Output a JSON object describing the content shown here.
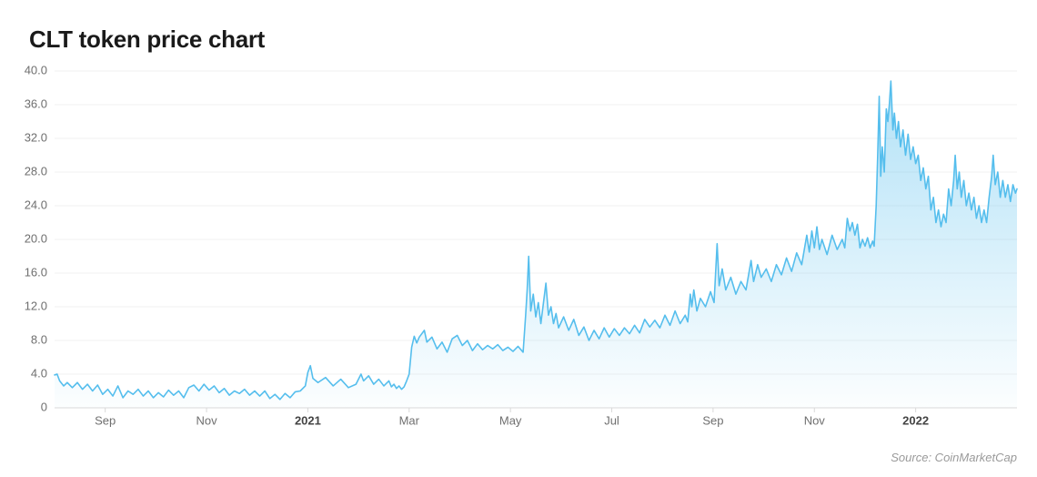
{
  "chart": {
    "type": "area",
    "title": "CLT token price chart",
    "source": "Source: CoinMarketCap",
    "title_fontsize": 26,
    "title_fontweight": 700,
    "title_color": "#1a1a1a",
    "background_color": "#ffffff",
    "grid_color": "#f1f1f1",
    "baseline_color": "#d9d9d9",
    "tick_label_color": "#6f6f6f",
    "tick_label_fontsize": 13,
    "line_color": "#55beed",
    "line_width": 1.6,
    "fill_top": "rgba(85,190,237,0.45)",
    "fill_bottom": "rgba(85,190,237,0.02)",
    "ylim": [
      0,
      40
    ],
    "ytick_step": 4,
    "y_ticks": [
      0,
      4.0,
      8.0,
      12.0,
      16.0,
      20.0,
      24.0,
      28.0,
      32.0,
      36.0,
      40.0
    ],
    "y_tick_labels": [
      "0",
      "4.0",
      "8.0",
      "12.0",
      "16.0",
      "20.0",
      "24.0",
      "28.0",
      "32.0",
      "36.0",
      "40.0"
    ],
    "x_range": [
      0,
      19
    ],
    "x_ticks": [
      {
        "pos": 1,
        "label": "Sep",
        "bold": false
      },
      {
        "pos": 3,
        "label": "Nov",
        "bold": false
      },
      {
        "pos": 5,
        "label": "2021",
        "bold": true
      },
      {
        "pos": 7,
        "label": "Mar",
        "bold": false
      },
      {
        "pos": 9,
        "label": "May",
        "bold": false
      },
      {
        "pos": 11,
        "label": "Jul",
        "bold": false
      },
      {
        "pos": 13,
        "label": "Sep",
        "bold": false
      },
      {
        "pos": 15,
        "label": "Nov",
        "bold": false
      },
      {
        "pos": 17,
        "label": "2022",
        "bold": true
      }
    ],
    "series": {
      "points": [
        [
          0.0,
          3.9
        ],
        [
          0.05,
          4.0
        ],
        [
          0.1,
          3.2
        ],
        [
          0.18,
          2.6
        ],
        [
          0.25,
          3.0
        ],
        [
          0.35,
          2.4
        ],
        [
          0.45,
          3.0
        ],
        [
          0.55,
          2.2
        ],
        [
          0.65,
          2.8
        ],
        [
          0.75,
          2.0
        ],
        [
          0.85,
          2.7
        ],
        [
          0.95,
          1.6
        ],
        [
          1.05,
          2.2
        ],
        [
          1.15,
          1.4
        ],
        [
          1.25,
          2.6
        ],
        [
          1.35,
          1.2
        ],
        [
          1.45,
          2.0
        ],
        [
          1.55,
          1.6
        ],
        [
          1.65,
          2.2
        ],
        [
          1.75,
          1.4
        ],
        [
          1.85,
          2.0
        ],
        [
          1.95,
          1.2
        ],
        [
          2.05,
          1.8
        ],
        [
          2.15,
          1.3
        ],
        [
          2.25,
          2.1
        ],
        [
          2.35,
          1.5
        ],
        [
          2.45,
          2.0
        ],
        [
          2.55,
          1.2
        ],
        [
          2.65,
          2.4
        ],
        [
          2.75,
          2.7
        ],
        [
          2.85,
          2.0
        ],
        [
          2.95,
          2.8
        ],
        [
          3.05,
          2.1
        ],
        [
          3.15,
          2.6
        ],
        [
          3.25,
          1.8
        ],
        [
          3.35,
          2.3
        ],
        [
          3.45,
          1.5
        ],
        [
          3.55,
          2.0
        ],
        [
          3.65,
          1.7
        ],
        [
          3.75,
          2.2
        ],
        [
          3.85,
          1.5
        ],
        [
          3.95,
          2.0
        ],
        [
          4.05,
          1.4
        ],
        [
          4.15,
          2.0
        ],
        [
          4.25,
          1.1
        ],
        [
          4.35,
          1.6
        ],
        [
          4.45,
          1.0
        ],
        [
          4.55,
          1.7
        ],
        [
          4.65,
          1.2
        ],
        [
          4.75,
          1.9
        ],
        [
          4.85,
          2.0
        ],
        [
          4.95,
          2.6
        ],
        [
          5.0,
          4.2
        ],
        [
          5.05,
          5.0
        ],
        [
          5.1,
          3.5
        ],
        [
          5.2,
          3.0
        ],
        [
          5.35,
          3.6
        ],
        [
          5.5,
          2.6
        ],
        [
          5.65,
          3.4
        ],
        [
          5.8,
          2.4
        ],
        [
          5.95,
          2.8
        ],
        [
          6.05,
          4.0
        ],
        [
          6.1,
          3.2
        ],
        [
          6.2,
          3.8
        ],
        [
          6.3,
          2.8
        ],
        [
          6.4,
          3.4
        ],
        [
          6.5,
          2.6
        ],
        [
          6.6,
          3.2
        ],
        [
          6.65,
          2.5
        ],
        [
          6.7,
          2.8
        ],
        [
          6.75,
          2.3
        ],
        [
          6.8,
          2.6
        ],
        [
          6.85,
          2.2
        ],
        [
          6.9,
          2.5
        ],
        [
          6.95,
          3.2
        ],
        [
          7.0,
          4.0
        ],
        [
          7.05,
          7.2
        ],
        [
          7.1,
          8.5
        ],
        [
          7.15,
          7.7
        ],
        [
          7.2,
          8.4
        ],
        [
          7.3,
          9.2
        ],
        [
          7.35,
          7.8
        ],
        [
          7.45,
          8.4
        ],
        [
          7.55,
          7.0
        ],
        [
          7.65,
          7.8
        ],
        [
          7.75,
          6.6
        ],
        [
          7.85,
          8.2
        ],
        [
          7.95,
          8.6
        ],
        [
          8.05,
          7.4
        ],
        [
          8.15,
          8.0
        ],
        [
          8.25,
          6.8
        ],
        [
          8.35,
          7.6
        ],
        [
          8.45,
          6.9
        ],
        [
          8.55,
          7.4
        ],
        [
          8.65,
          7.0
        ],
        [
          8.75,
          7.5
        ],
        [
          8.85,
          6.8
        ],
        [
          8.95,
          7.2
        ],
        [
          9.05,
          6.7
        ],
        [
          9.15,
          7.3
        ],
        [
          9.25,
          6.6
        ],
        [
          9.3,
          11.0
        ],
        [
          9.33,
          14.0
        ],
        [
          9.36,
          18.0
        ],
        [
          9.4,
          11.5
        ],
        [
          9.45,
          13.5
        ],
        [
          9.5,
          10.8
        ],
        [
          9.55,
          12.5
        ],
        [
          9.6,
          10.0
        ],
        [
          9.7,
          14.8
        ],
        [
          9.75,
          11.0
        ],
        [
          9.8,
          12.0
        ],
        [
          9.85,
          10.0
        ],
        [
          9.9,
          11.2
        ],
        [
          9.95,
          9.5
        ],
        [
          10.05,
          10.8
        ],
        [
          10.15,
          9.2
        ],
        [
          10.25,
          10.5
        ],
        [
          10.35,
          8.6
        ],
        [
          10.45,
          9.6
        ],
        [
          10.55,
          8.0
        ],
        [
          10.65,
          9.2
        ],
        [
          10.75,
          8.2
        ],
        [
          10.85,
          9.5
        ],
        [
          10.95,
          8.4
        ],
        [
          11.05,
          9.4
        ],
        [
          11.15,
          8.6
        ],
        [
          11.25,
          9.5
        ],
        [
          11.35,
          8.8
        ],
        [
          11.45,
          9.8
        ],
        [
          11.55,
          8.9
        ],
        [
          11.65,
          10.5
        ],
        [
          11.75,
          9.6
        ],
        [
          11.85,
          10.4
        ],
        [
          11.95,
          9.5
        ],
        [
          12.05,
          11.0
        ],
        [
          12.15,
          9.8
        ],
        [
          12.25,
          11.5
        ],
        [
          12.35,
          10.0
        ],
        [
          12.45,
          11.0
        ],
        [
          12.5,
          10.2
        ],
        [
          12.55,
          13.5
        ],
        [
          12.58,
          12.0
        ],
        [
          12.62,
          14.0
        ],
        [
          12.68,
          11.5
        ],
        [
          12.75,
          13.0
        ],
        [
          12.85,
          12.0
        ],
        [
          12.95,
          13.8
        ],
        [
          13.02,
          12.5
        ],
        [
          13.08,
          19.5
        ],
        [
          13.12,
          14.5
        ],
        [
          13.18,
          16.5
        ],
        [
          13.25,
          14.0
        ],
        [
          13.35,
          15.5
        ],
        [
          13.45,
          13.5
        ],
        [
          13.55,
          15.0
        ],
        [
          13.65,
          14.0
        ],
        [
          13.75,
          17.5
        ],
        [
          13.8,
          15.0
        ],
        [
          13.88,
          17.0
        ],
        [
          13.95,
          15.5
        ],
        [
          14.05,
          16.5
        ],
        [
          14.15,
          15.0
        ],
        [
          14.25,
          17.0
        ],
        [
          14.35,
          15.8
        ],
        [
          14.45,
          17.8
        ],
        [
          14.55,
          16.2
        ],
        [
          14.65,
          18.4
        ],
        [
          14.75,
          17.0
        ],
        [
          14.85,
          20.5
        ],
        [
          14.9,
          18.5
        ],
        [
          14.95,
          21.0
        ],
        [
          15.0,
          19.0
        ],
        [
          15.05,
          21.5
        ],
        [
          15.1,
          18.8
        ],
        [
          15.15,
          20.0
        ],
        [
          15.25,
          18.2
        ],
        [
          15.35,
          20.5
        ],
        [
          15.45,
          18.8
        ],
        [
          15.55,
          20.0
        ],
        [
          15.6,
          19.0
        ],
        [
          15.65,
          22.5
        ],
        [
          15.7,
          21.0
        ],
        [
          15.75,
          22.0
        ],
        [
          15.8,
          20.5
        ],
        [
          15.85,
          21.8
        ],
        [
          15.9,
          19.0
        ],
        [
          15.95,
          20.0
        ],
        [
          16.0,
          19.2
        ],
        [
          16.05,
          20.2
        ],
        [
          16.1,
          19.0
        ],
        [
          16.15,
          19.8
        ],
        [
          16.18,
          19.2
        ],
        [
          16.22,
          24.0
        ],
        [
          16.25,
          30.0
        ],
        [
          16.28,
          37.0
        ],
        [
          16.31,
          27.5
        ],
        [
          16.34,
          31.0
        ],
        [
          16.38,
          28.0
        ],
        [
          16.42,
          35.5
        ],
        [
          16.45,
          34.0
        ],
        [
          16.48,
          36.0
        ],
        [
          16.51,
          38.8
        ],
        [
          16.55,
          33.0
        ],
        [
          16.58,
          35.0
        ],
        [
          16.62,
          32.0
        ],
        [
          16.66,
          34.0
        ],
        [
          16.7,
          31.0
        ],
        [
          16.75,
          33.0
        ],
        [
          16.8,
          30.0
        ],
        [
          16.85,
          32.5
        ],
        [
          16.9,
          29.5
        ],
        [
          16.95,
          31.0
        ],
        [
          17.0,
          29.0
        ],
        [
          17.05,
          30.0
        ],
        [
          17.1,
          27.0
        ],
        [
          17.15,
          28.5
        ],
        [
          17.2,
          26.0
        ],
        [
          17.25,
          27.5
        ],
        [
          17.3,
          23.5
        ],
        [
          17.35,
          25.0
        ],
        [
          17.4,
          22.0
        ],
        [
          17.45,
          23.5
        ],
        [
          17.5,
          21.5
        ],
        [
          17.55,
          23.0
        ],
        [
          17.6,
          22.0
        ],
        [
          17.65,
          26.0
        ],
        [
          17.7,
          24.0
        ],
        [
          17.75,
          27.0
        ],
        [
          17.78,
          30.0
        ],
        [
          17.82,
          26.0
        ],
        [
          17.86,
          28.0
        ],
        [
          17.9,
          25.0
        ],
        [
          17.95,
          27.0
        ],
        [
          18.0,
          24.0
        ],
        [
          18.05,
          25.5
        ],
        [
          18.1,
          23.5
        ],
        [
          18.15,
          25.0
        ],
        [
          18.2,
          22.5
        ],
        [
          18.25,
          24.0
        ],
        [
          18.3,
          22.0
        ],
        [
          18.35,
          23.5
        ],
        [
          18.4,
          22.0
        ],
        [
          18.45,
          25.0
        ],
        [
          18.5,
          27.5
        ],
        [
          18.53,
          30.0
        ],
        [
          18.57,
          26.5
        ],
        [
          18.62,
          28.0
        ],
        [
          18.67,
          25.0
        ],
        [
          18.72,
          27.0
        ],
        [
          18.77,
          25.0
        ],
        [
          18.82,
          26.5
        ],
        [
          18.87,
          24.5
        ],
        [
          18.92,
          26.5
        ],
        [
          18.97,
          25.5
        ],
        [
          19.0,
          26.0
        ]
      ]
    }
  }
}
